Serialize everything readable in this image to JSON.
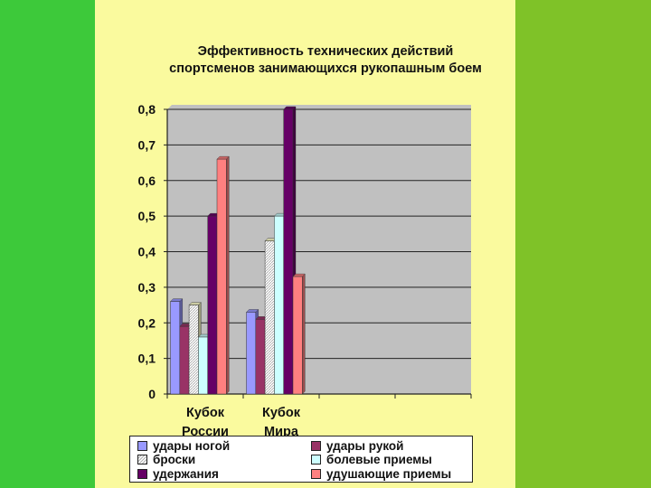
{
  "colors": {
    "bg_left": "#3dc93a",
    "bg_right": "#7fc228",
    "panel": "#fafa9e",
    "plot_area": "#c0c0c0"
  },
  "chart_data": {
    "type": "bar",
    "title": "Эффективность технических действий спортсменов занимающихся рукопашным боем",
    "xlabel": "",
    "ylabel": "",
    "ylim": [
      0,
      0.8
    ],
    "yticks": [
      "0",
      "0,1",
      "0,2",
      "0,3",
      "0,4",
      "0,5",
      "0,6",
      "0,7",
      "0,8"
    ],
    "categories": [
      "Кубок России",
      "Кубок Мира"
    ],
    "category_lines": [
      [
        "Кубок",
        "России"
      ],
      [
        "Кубок",
        "Мира"
      ]
    ],
    "empty_slots": 2,
    "grid": true,
    "legend_position": "bottom",
    "series": [
      {
        "name": "удары ногой",
        "values": [
          0.26,
          0.23
        ],
        "color": "#9999ff"
      },
      {
        "name": "удары рукой",
        "values": [
          0.19,
          0.21
        ],
        "color": "#993366"
      },
      {
        "name": "броски",
        "values": [
          0.25,
          0.43
        ],
        "color": "#ffffcc",
        "pattern": true
      },
      {
        "name": "болевые приемы",
        "values": [
          0.16,
          0.5
        ],
        "color": "#ccffff"
      },
      {
        "name": "удержания",
        "values": [
          0.5,
          0.8
        ],
        "color": "#660066"
      },
      {
        "name": "удушающие приемы",
        "values": [
          0.66,
          0.33
        ],
        "color": "#ff8080"
      }
    ]
  }
}
